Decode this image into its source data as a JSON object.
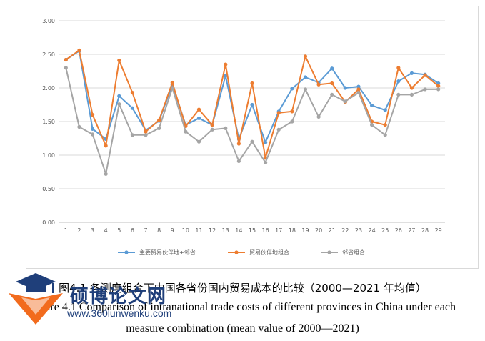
{
  "chart_data": {
    "type": "line",
    "title": "",
    "xlabel": "",
    "ylabel": "",
    "ylim": [
      0,
      3
    ],
    "y_ticks": [
      "0.00",
      "0.50",
      "1.00",
      "1.50",
      "2.00",
      "2.50",
      "3.00"
    ],
    "categories": [
      "1",
      "2",
      "3",
      "4",
      "5",
      "6",
      "7",
      "8",
      "9",
      "10",
      "11",
      "12",
      "13",
      "14",
      "15",
      "16",
      "17",
      "18",
      "19",
      "20",
      "21",
      "22",
      "23",
      "24",
      "25",
      "26",
      "27",
      "28",
      "29"
    ],
    "grid": true,
    "legend_position": "bottom",
    "series": [
      {
        "name": "主要贸易伙伴地+邻省",
        "color": "#5b9bd5",
        "values": [
          2.42,
          2.55,
          1.39,
          1.24,
          1.88,
          1.7,
          1.37,
          1.51,
          2.05,
          1.45,
          1.55,
          1.45,
          2.18,
          1.24,
          1.75,
          1.19,
          1.65,
          1.99,
          2.16,
          2.08,
          2.29,
          2.0,
          2.02,
          1.74,
          1.67,
          2.1,
          2.22,
          2.2,
          2.07
        ]
      },
      {
        "name": "贸易伙伴地组合",
        "color": "#ed7d31",
        "values": [
          2.42,
          2.56,
          1.6,
          1.14,
          2.41,
          1.93,
          1.35,
          1.52,
          2.08,
          1.43,
          1.68,
          1.45,
          2.35,
          1.17,
          2.07,
          0.96,
          1.63,
          1.65,
          2.47,
          2.05,
          2.07,
          1.79,
          1.98,
          1.5,
          1.45,
          2.3,
          2.0,
          2.19,
          2.03
        ]
      },
      {
        "name": "邻省组合",
        "color": "#a5a5a5",
        "values": [
          2.3,
          1.42,
          1.31,
          0.72,
          1.76,
          1.3,
          1.3,
          1.4,
          2.0,
          1.35,
          1.2,
          1.38,
          1.4,
          0.91,
          1.2,
          0.89,
          1.38,
          1.5,
          1.98,
          1.57,
          1.9,
          1.8,
          1.93,
          1.45,
          1.3,
          1.9,
          1.9,
          1.98,
          1.98
        ]
      }
    ]
  },
  "caption": {
    "cn": "图4.1  各测度组合下中国各省份国内贸易成本的比较（2000—2021 年均值）",
    "en_line1": "Figure 4.1  Comparison of intranational trade costs of different provinces in China under each",
    "en_line2": "measure combination (mean value of 2000—2021)"
  },
  "watermark": {
    "title": "硕博论文网",
    "url": "www.360lunwenku.com",
    "accent_color": "#f26b1d",
    "brand_color": "#1f3f7a"
  }
}
